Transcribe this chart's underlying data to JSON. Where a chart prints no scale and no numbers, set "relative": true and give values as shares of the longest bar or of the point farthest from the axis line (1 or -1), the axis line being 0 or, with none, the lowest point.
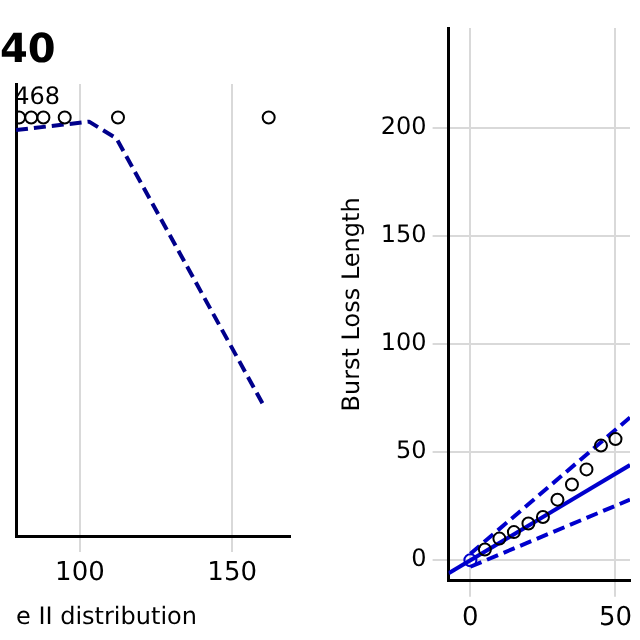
{
  "chart_data": [
    {
      "type": "scatter",
      "title": "40",
      "xlabel": "e II distribution",
      "relative": true,
      "xlim": [
        79,
        169
      ],
      "xticks": [
        100,
        150
      ],
      "grid": "x",
      "tick_labels": "x",
      "series": [
        {
          "type": "scatter",
          "color": "#000000",
          "marker": "circle",
          "x": [
            80,
            84,
            88,
            95,
            112.5,
            162
          ],
          "values": [
            1,
            1,
            1,
            1,
            1,
            1
          ]
        },
        {
          "type": "line",
          "color": "#00008b",
          "line_style": "dashed",
          "marker": "none",
          "x": [
            79,
            103,
            112,
            160.5
          ],
          "values": [
            0.97,
            0.99,
            0.95,
            0.31
          ]
        }
      ],
      "annotations": [
        {
          "text": "468",
          "x": 82,
          "y": 1
        }
      ]
    },
    {
      "type": "scatter",
      "ylabel": "Burst Loss Length",
      "xlim": [
        -7.5,
        55
      ],
      "ylim": [
        -9.5,
        246
      ],
      "xticks": [
        0,
        50
      ],
      "yticks": [
        0,
        50,
        100,
        150,
        200
      ],
      "grid": true,
      "series": [
        {
          "type": "scatter",
          "color": "#000000",
          "marker": "circle",
          "x": [
            5,
            10,
            15,
            20,
            25,
            30,
            35,
            40,
            45,
            50
          ],
          "values": [
            5,
            10,
            13,
            17,
            20,
            28,
            35,
            42,
            53,
            56
          ]
        },
        {
          "type": "scatter",
          "color": "#0000cd",
          "marker": "circle",
          "x": [
            0
          ],
          "values": [
            0
          ]
        },
        {
          "type": "line",
          "color": "#0000cd",
          "line_style": "solid",
          "marker": "none",
          "x": [
            -7.5,
            55
          ],
          "values": [
            -6,
            44
          ]
        },
        {
          "type": "line",
          "color": "#0000cd",
          "line_style": "dashed",
          "marker": "none",
          "x": [
            0,
            55
          ],
          "values": [
            3,
            66
          ]
        },
        {
          "type": "line",
          "color": "#0000cd",
          "line_style": "dashed",
          "marker": "none",
          "x": [
            0,
            55
          ],
          "values": [
            -3,
            28
          ]
        }
      ]
    }
  ]
}
